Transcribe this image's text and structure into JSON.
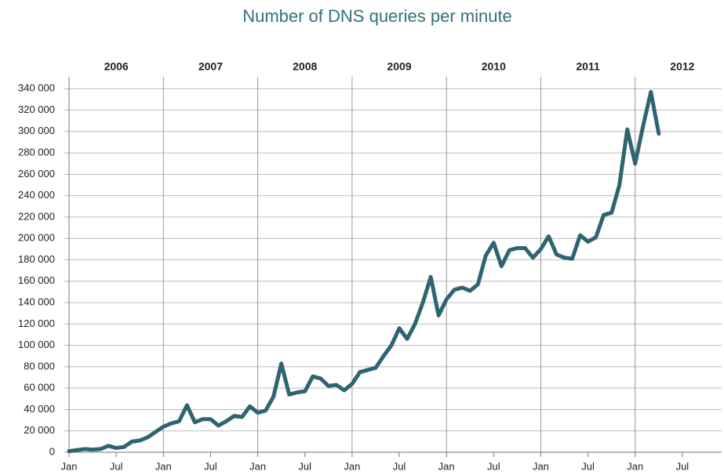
{
  "chart_data": {
    "type": "line",
    "title": "Number of DNS queries per minute",
    "x": [
      "2006-01",
      "2006-02",
      "2006-03",
      "2006-04",
      "2006-05",
      "2006-06",
      "2006-07",
      "2006-08",
      "2006-09",
      "2006-10",
      "2006-11",
      "2006-12",
      "2007-01",
      "2007-02",
      "2007-03",
      "2007-04",
      "2007-05",
      "2007-06",
      "2007-07",
      "2007-08",
      "2007-09",
      "2007-10",
      "2007-11",
      "2007-12",
      "2008-01",
      "2008-02",
      "2008-03",
      "2008-04",
      "2008-05",
      "2008-06",
      "2008-07",
      "2008-08",
      "2008-09",
      "2008-10",
      "2008-11",
      "2008-12",
      "2009-01",
      "2009-02",
      "2009-03",
      "2009-04",
      "2009-05",
      "2009-06",
      "2009-07",
      "2009-08",
      "2009-09",
      "2009-10",
      "2009-11",
      "2009-12",
      "2010-01",
      "2010-02",
      "2010-03",
      "2010-04",
      "2010-05",
      "2010-06",
      "2010-07",
      "2010-08",
      "2010-09",
      "2010-10",
      "2010-11",
      "2010-12",
      "2011-01",
      "2011-02",
      "2011-03",
      "2011-04",
      "2011-05",
      "2011-06",
      "2011-07",
      "2011-08",
      "2011-09",
      "2011-10",
      "2011-11",
      "2011-12",
      "2012-01",
      "2012-02",
      "2012-03",
      "2012-04"
    ],
    "series": [
      {
        "name": "DNS queries per minute",
        "color": "#2e6470",
        "values": [
          1000,
          2000,
          3000,
          2500,
          3000,
          6000,
          4000,
          5000,
          10000,
          11000,
          14000,
          19000,
          24000,
          27000,
          29000,
          44000,
          28000,
          31000,
          31000,
          25000,
          29000,
          34000,
          33000,
          43000,
          37000,
          39000,
          52000,
          83000,
          54000,
          56000,
          57000,
          71000,
          69000,
          62000,
          63000,
          58000,
          64000,
          75000,
          77000,
          79000,
          90000,
          100000,
          116000,
          106000,
          120000,
          140000,
          164000,
          128000,
          143000,
          152000,
          154000,
          151000,
          157000,
          184000,
          196000,
          174000,
          189000,
          191000,
          191000,
          182000,
          190000,
          202000,
          185000,
          182000,
          181000,
          203000,
          197000,
          201000,
          222000,
          224000,
          250000,
          302000,
          270000,
          305000,
          337000,
          298000
        ]
      }
    ],
    "xlim": [
      "2006-01",
      "2012-12"
    ],
    "xticks": [
      {
        "value": "2006-01",
        "label": "Jan"
      },
      {
        "value": "2006-07",
        "label": "Jul"
      },
      {
        "value": "2007-01",
        "label": "Jan"
      },
      {
        "value": "2007-07",
        "label": "Jul"
      },
      {
        "value": "2008-01",
        "label": "Jan"
      },
      {
        "value": "2008-07",
        "label": "Jul"
      },
      {
        "value": "2009-01",
        "label": "Jan"
      },
      {
        "value": "2009-07",
        "label": "Jul"
      },
      {
        "value": "2010-01",
        "label": "Jan"
      },
      {
        "value": "2010-07",
        "label": "Jul"
      },
      {
        "value": "2011-01",
        "label": "Jan"
      },
      {
        "value": "2011-07",
        "label": "Jul"
      },
      {
        "value": "2012-01",
        "label": "Jan"
      },
      {
        "value": "2012-07",
        "label": "Jul"
      }
    ],
    "year_labels": [
      {
        "value": "2006-07",
        "label": "2006"
      },
      {
        "value": "2007-07",
        "label": "2007"
      },
      {
        "value": "2008-07",
        "label": "2008"
      },
      {
        "value": "2009-07",
        "label": "2009"
      },
      {
        "value": "2010-07",
        "label": "2010"
      },
      {
        "value": "2011-07",
        "label": "2011"
      },
      {
        "value": "2012-07",
        "label": "2012"
      }
    ],
    "year_lines": [
      "2007-01",
      "2008-01",
      "2009-01",
      "2010-01",
      "2011-01",
      "2012-01"
    ],
    "ylim": [
      0,
      350000
    ],
    "yticks": [
      0,
      {
        "value": 20000,
        "label": "20 000"
      },
      {
        "value": 40000,
        "label": "40 000"
      },
      {
        "value": 60000,
        "label": "60 000"
      },
      {
        "value": 80000,
        "label": "80 000"
      },
      {
        "value": 100000,
        "label": "100 000"
      },
      {
        "value": 120000,
        "label": "120 000"
      },
      {
        "value": 140000,
        "label": "140 000"
      },
      {
        "value": 160000,
        "label": "160 000"
      },
      {
        "value": 180000,
        "label": "180 000"
      },
      {
        "value": 200000,
        "label": "200 000"
      },
      {
        "value": 220000,
        "label": "220 000"
      },
      {
        "value": 240000,
        "label": "240 000"
      },
      {
        "value": 260000,
        "label": "260 000"
      },
      {
        "value": 280000,
        "label": "280 000"
      },
      {
        "value": 300000,
        "label": "300 000"
      },
      {
        "value": 320000,
        "label": "320 000"
      },
      {
        "value": 340000,
        "label": "340 000"
      }
    ],
    "grid": true
  }
}
